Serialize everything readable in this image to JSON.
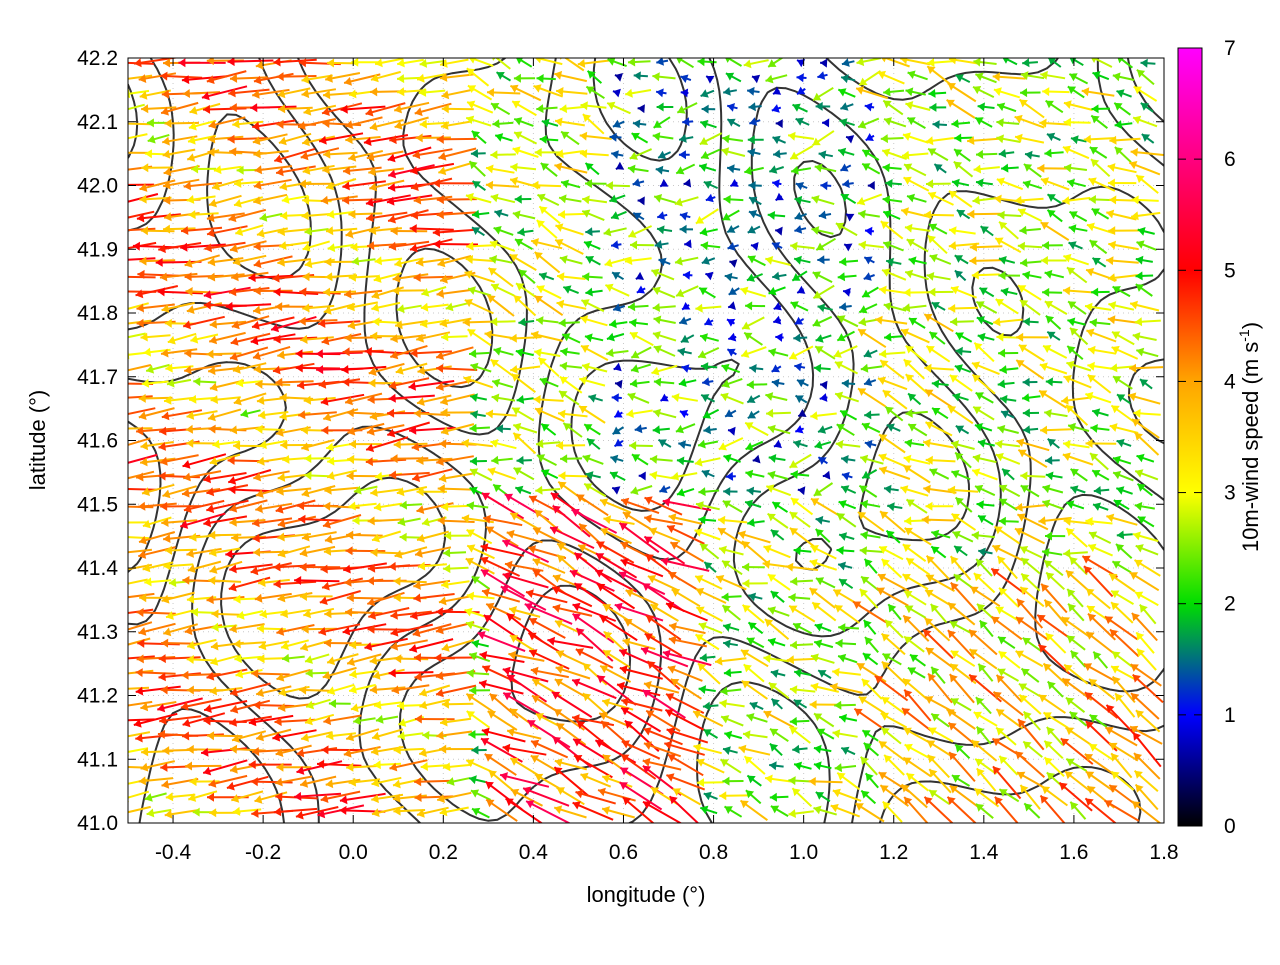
{
  "chart_data": {
    "type": "vector-field",
    "title": "",
    "xlabel": "longitude (°)",
    "ylabel": "latitude (°)",
    "xlim": [
      -0.5,
      1.8
    ],
    "ylim": [
      41.0,
      42.2
    ],
    "x_ticks": [
      -0.4,
      -0.2,
      0.0,
      0.2,
      0.4,
      0.6,
      0.8,
      1.0,
      1.2,
      1.4,
      1.6,
      1.8
    ],
    "x_tick_labels": [
      "-0.4",
      "-0.2",
      "0.0",
      "0.2",
      "0.4",
      "0.6",
      "0.8",
      "1.0",
      "1.2",
      "1.4",
      "1.6",
      "1.8"
    ],
    "y_ticks": [
      41.0,
      41.1,
      41.2,
      41.3,
      41.4,
      41.5,
      41.6,
      41.7,
      41.8,
      41.9,
      42.0,
      42.1,
      42.2
    ],
    "y_tick_labels": [
      "41.0",
      "41.1",
      "41.2",
      "41.3",
      "41.4",
      "41.5",
      "41.6",
      "41.7",
      "41.8",
      "41.9",
      "42.0",
      "42.1",
      "42.2"
    ],
    "grid": true,
    "colorbar": {
      "label_main": "10m-wind speed (m s",
      "label_sup": "-1",
      "label_end": ")",
      "range": [
        0,
        7
      ],
      "ticks": [
        0,
        1,
        2,
        3,
        4,
        5,
        6,
        7
      ],
      "tick_labels": [
        "0",
        "1",
        "2",
        "3",
        "4",
        "5",
        "6",
        "7"
      ],
      "colors": [
        "#000000",
        "#0000ff",
        "#00dd00",
        "#ffff00",
        "#ffa500",
        "#ff0000",
        "#ff00ff"
      ]
    },
    "contour_color": "#333333",
    "approximate_field": [
      {
        "region": "west (lon -0.5 to 0.2)",
        "direction": "from east (arrows point west)",
        "speed_range": [
          3,
          5.5
        ]
      },
      {
        "region": "central (lon 0.3 to 1.1, lat 41.5 to 42.1)",
        "direction": "variable, mostly westward",
        "speed_range": [
          0.5,
          3
        ]
      },
      {
        "region": "south-east (lon 1.1 to 1.8, lat 41.0 to 41.4)",
        "direction": "toward north-west",
        "speed_range": [
          1.5,
          5.5
        ]
      },
      {
        "region": "south-central (lon 0.3 to 0.7, lat 41.3 to 41.5)",
        "direction": "toward north-west",
        "speed_range": [
          4,
          6
        ]
      }
    ]
  }
}
